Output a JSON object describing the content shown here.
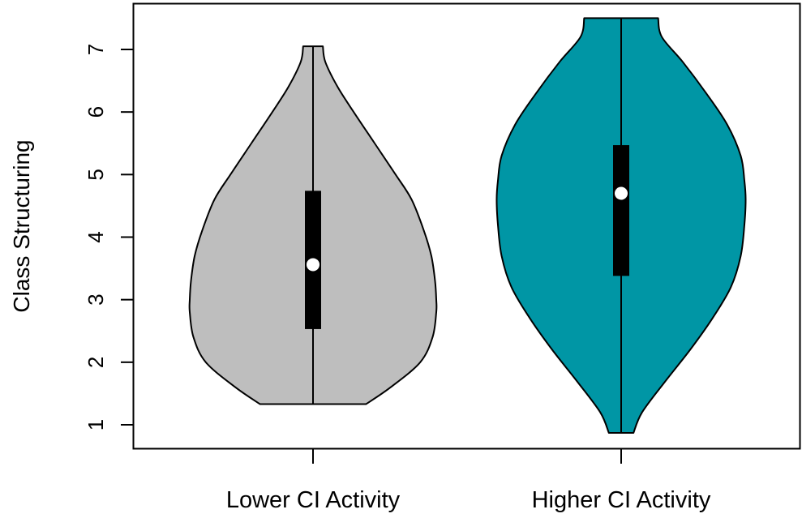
{
  "chart_data": {
    "type": "violin",
    "title": "",
    "xlabel": "",
    "ylabel": "Class Structuring",
    "ylim": [
      0.6,
      7.8
    ],
    "yticks": [
      1,
      2,
      3,
      4,
      5,
      6,
      7
    ],
    "grid": false,
    "legend": "none",
    "series": [
      {
        "category": "Lower CI Activity",
        "color": "#bebebe",
        "min": 1.33,
        "max": 7.05,
        "q1": 2.53,
        "median": 3.56,
        "q3": 4.74,
        "density_y": [
          1.33,
          1.6,
          2.0,
          2.4,
          2.8,
          3.0,
          3.3,
          3.7,
          4.1,
          4.6,
          5.0,
          5.5,
          6.0,
          6.4,
          6.8,
          7.05
        ],
        "density_half_width": [
          0.43,
          0.63,
          0.87,
          0.97,
          1.0,
          1.0,
          0.99,
          0.96,
          0.9,
          0.8,
          0.67,
          0.5,
          0.33,
          0.2,
          0.1,
          0.08
        ]
      },
      {
        "category": "Higher CI Activity",
        "color": "#0096a5",
        "min": 0.87,
        "max": 7.5,
        "q1": 3.38,
        "median": 4.7,
        "q3": 5.47,
        "density_y": [
          0.87,
          1.2,
          1.7,
          2.2,
          2.7,
          3.2,
          3.7,
          4.2,
          4.6,
          4.9,
          5.3,
          5.8,
          6.3,
          6.8,
          7.2,
          7.5
        ],
        "density_half_width": [
          0.1,
          0.17,
          0.36,
          0.56,
          0.74,
          0.89,
          0.97,
          1.0,
          1.01,
          1.0,
          0.97,
          0.86,
          0.69,
          0.5,
          0.33,
          0.3
        ]
      }
    ]
  }
}
